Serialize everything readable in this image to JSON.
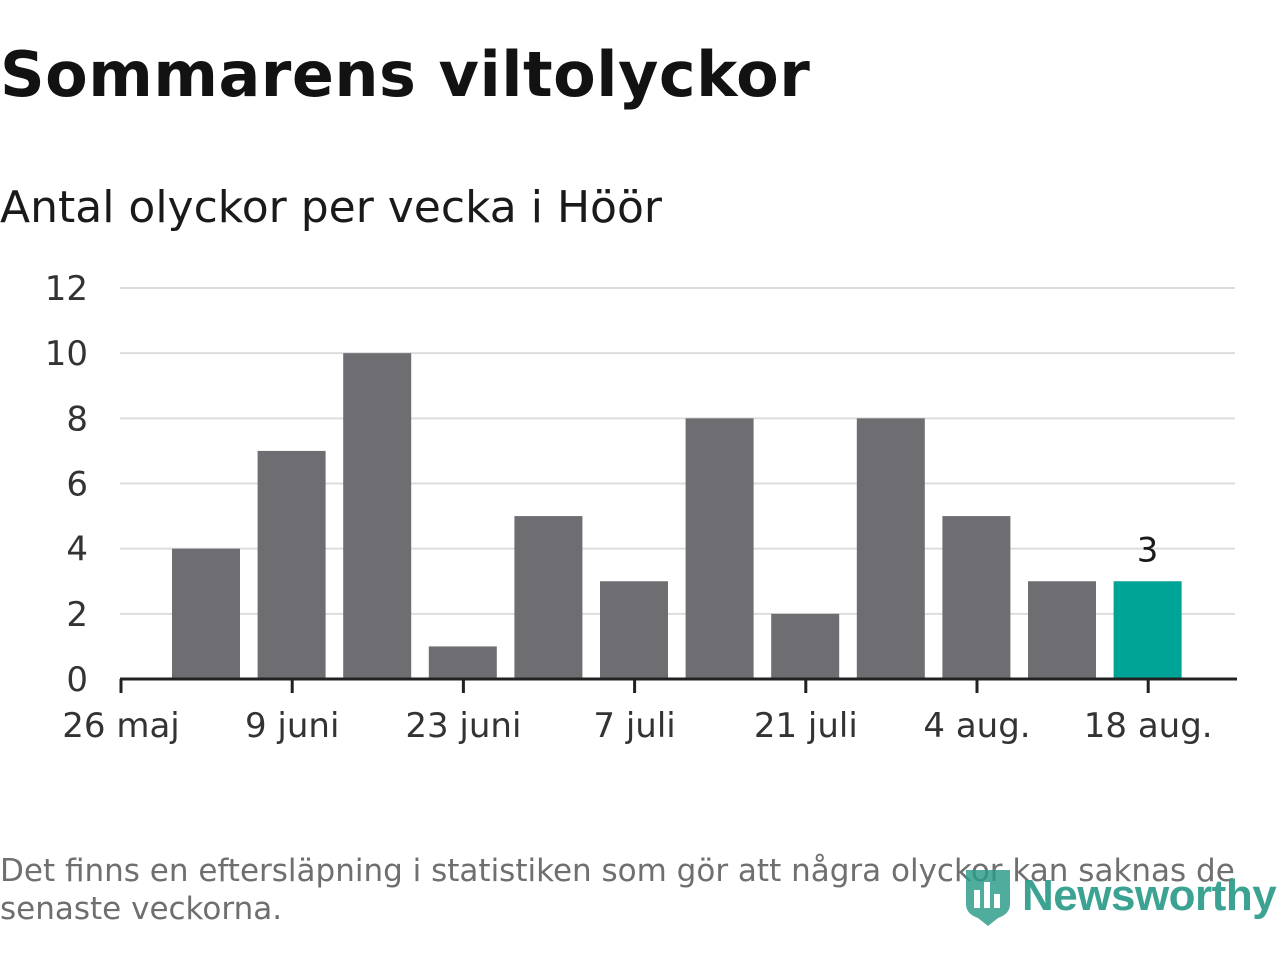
{
  "header": {
    "title": "Sommarens viltolyckor",
    "subtitle": "Antal olyckor per vecka i Höör"
  },
  "chart_data": {
    "type": "bar",
    "title": "Sommarens viltolyckor",
    "subtitle": "Antal olyckor per vecka i Höör",
    "xlabel": "",
    "ylabel": "",
    "ylim": [
      0,
      12
    ],
    "yticks": [
      "0",
      "2",
      "4",
      "6",
      "8",
      "10",
      "12"
    ],
    "xticks": [
      "26 maj",
      "9 juni",
      "23 juni",
      "7 juli",
      "21 juli",
      "4 aug.",
      "18 aug."
    ],
    "series": [
      {
        "values": [
          4,
          7,
          10,
          1,
          5,
          3,
          8,
          2,
          8,
          5,
          3,
          3
        ]
      }
    ],
    "highlight_index": 11,
    "highlight_label": "3",
    "colors": {
      "bar": "#6e6d72",
      "highlight": "#00a497",
      "grid": "#dddddd",
      "axis": "#222222"
    },
    "grid": true,
    "legend": "none"
  },
  "footer": {
    "note": "Det finns en eftersläpning i statistiken som gör att några olyckor kan saknas de senaste veckorna.",
    "brand": "Newsworthy",
    "brand_icon": "bar-chart-shield-icon",
    "brand_color": "#2c9b88"
  }
}
